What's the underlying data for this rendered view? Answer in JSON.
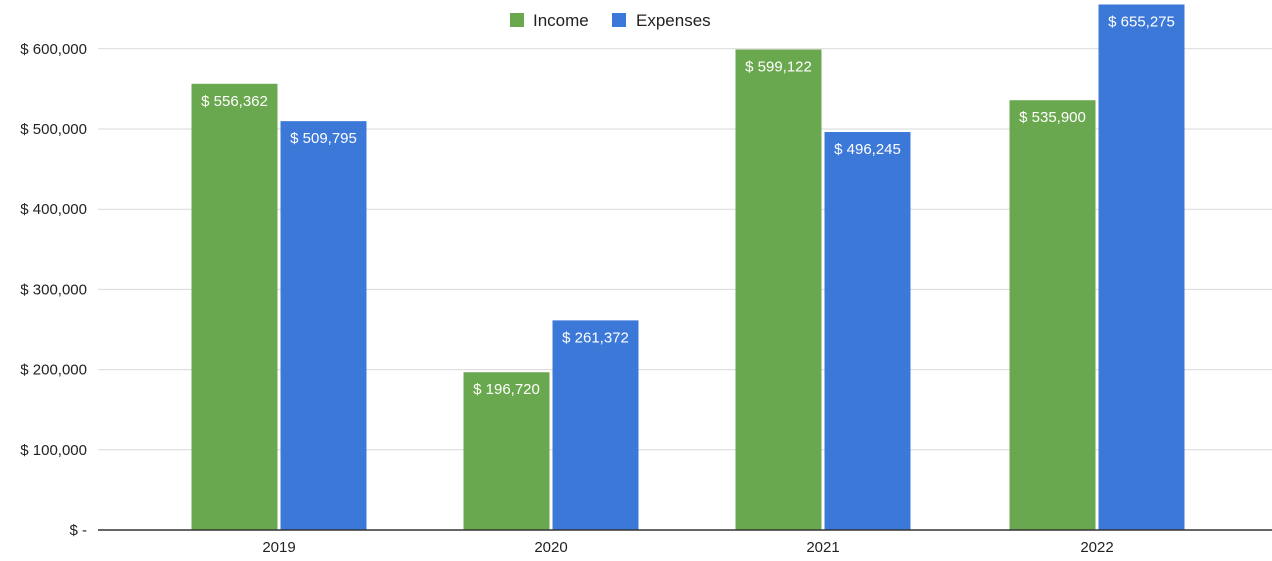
{
  "chart_data": {
    "type": "bar",
    "categories": [
      "2019",
      "2020",
      "2021",
      "2022"
    ],
    "series": [
      {
        "name": "Income",
        "color": "#6aa84f",
        "values": [
          556362,
          196720,
          599122,
          535900
        ],
        "labels": [
          "$ 556,362",
          "$ 196,720",
          "$ 599,122",
          "$ 535,900"
        ]
      },
      {
        "name": "Expenses",
        "color": "#3c78d8",
        "values": [
          509795,
          261372,
          496245,
          655275
        ],
        "labels": [
          "$ 509,795",
          "$ 261,372",
          "$ 496,245",
          "$ 655,275"
        ]
      }
    ],
    "title": "",
    "xlabel": "",
    "ylabel": "",
    "ylim": [
      0,
      650000
    ],
    "yticks": [
      0,
      100000,
      200000,
      300000,
      400000,
      500000,
      600000
    ],
    "ytick_labels": [
      "$ -",
      "$ 100,000",
      "$ 200,000",
      "$ 300,000",
      "$ 400,000",
      "$ 500,000",
      "$ 600,000"
    ],
    "grid": true,
    "legend_position": "top-center",
    "gridline_color": "#d9d9d9",
    "axis_color": "#333333"
  }
}
